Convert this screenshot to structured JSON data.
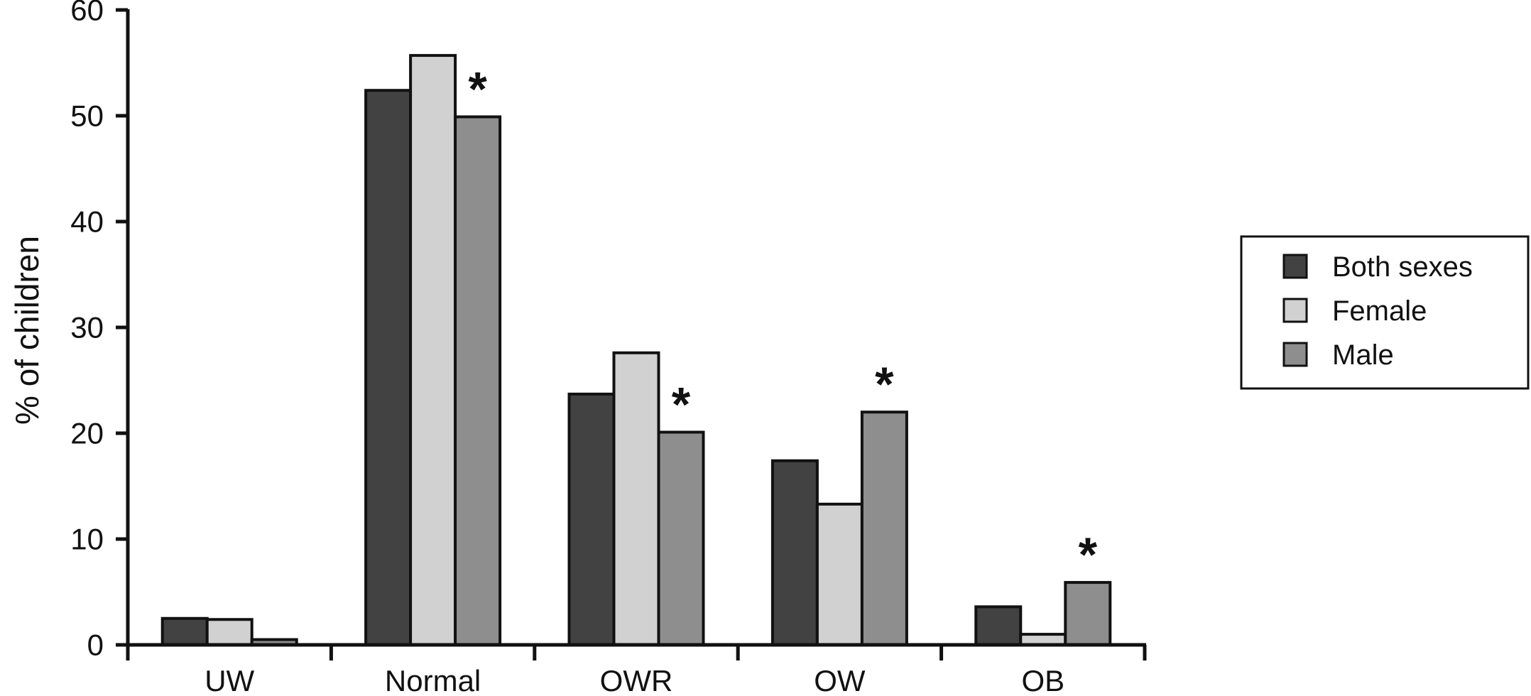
{
  "chart_data": {
    "type": "bar",
    "categories": [
      "UW",
      "Normal",
      "OWR",
      "OW",
      "OB"
    ],
    "series": [
      {
        "name": "Both sexes",
        "color": "#424242",
        "values": [
          2.5,
          52.4,
          23.7,
          17.4,
          3.6
        ]
      },
      {
        "name": "Female",
        "color": "#d1d1d1",
        "values": [
          2.4,
          55.7,
          27.6,
          13.3,
          1.0
        ]
      },
      {
        "name": "Male",
        "color": "#8e8e8e",
        "values": [
          0.5,
          49.9,
          20.1,
          22.0,
          5.9
        ]
      }
    ],
    "ylabel": "% of children",
    "xlabel": "",
    "ylim": [
      0,
      60
    ],
    "yticks": [
      0,
      10,
      20,
      30,
      40,
      50,
      60
    ],
    "grid": false,
    "legend_position": "right",
    "annotations": [
      {
        "text": "*",
        "category": "Normal",
        "series": "Male"
      },
      {
        "text": "*",
        "category": "OWR",
        "series": "Male"
      },
      {
        "text": "*",
        "category": "OW",
        "series": "Male"
      },
      {
        "text": "*",
        "category": "OB",
        "series": "Male"
      }
    ],
    "ink_color": "#111111"
  },
  "legend": {
    "items": [
      {
        "label": "Both sexes"
      },
      {
        "label": "Female"
      },
      {
        "label": "Male"
      }
    ]
  }
}
